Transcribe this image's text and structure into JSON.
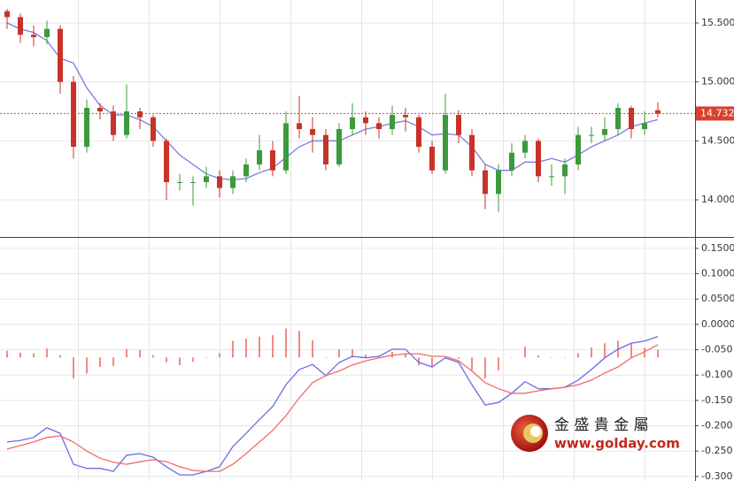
{
  "chart_data": [
    {
      "type": "candlestick",
      "ylim": [
        13.685,
        15.695
      ],
      "yticks": [
        {
          "value": 14.0,
          "label": "14.000"
        },
        {
          "value": 14.5,
          "label": "14.500"
        },
        {
          "value": 15.0,
          "label": "15.000"
        },
        {
          "value": 15.5,
          "label": "15.500"
        }
      ],
      "open": [
        15.6,
        15.55,
        15.4,
        15.38,
        15.45,
        15.0,
        14.45,
        14.78,
        14.75,
        14.55,
        14.75,
        14.7,
        14.5,
        14.15,
        14.15,
        14.15,
        14.2,
        14.1,
        14.2,
        14.3,
        14.42,
        14.25,
        14.65,
        14.6,
        14.55,
        14.3,
        14.6,
        14.7,
        14.65,
        14.6,
        14.72,
        14.7,
        14.45,
        14.25,
        14.72,
        14.55,
        14.25,
        14.05,
        14.25,
        14.4,
        14.5,
        14.2,
        14.2,
        14.3,
        14.55,
        14.55,
        14.6,
        14.78,
        14.6,
        14.76
      ],
      "high": [
        15.62,
        15.58,
        15.48,
        15.52,
        15.48,
        15.05,
        14.85,
        14.82,
        14.8,
        14.98,
        14.78,
        14.72,
        14.52,
        14.22,
        14.2,
        14.28,
        14.25,
        14.25,
        14.35,
        14.55,
        14.5,
        14.75,
        14.88,
        14.7,
        14.6,
        14.65,
        14.82,
        14.75,
        14.7,
        14.8,
        14.78,
        14.72,
        14.5,
        14.9,
        14.76,
        14.6,
        14.3,
        14.3,
        14.48,
        14.55,
        14.52,
        14.3,
        14.35,
        14.62,
        14.62,
        14.7,
        14.82,
        14.8,
        14.75,
        14.83
      ],
      "low": [
        15.45,
        15.33,
        15.3,
        15.32,
        14.9,
        14.35,
        14.4,
        14.68,
        14.5,
        14.52,
        14.6,
        14.45,
        14.0,
        14.08,
        13.95,
        14.1,
        14.02,
        14.05,
        14.15,
        14.25,
        14.2,
        14.22,
        14.52,
        14.4,
        14.25,
        14.28,
        14.55,
        14.55,
        14.52,
        14.55,
        14.58,
        14.4,
        14.22,
        14.22,
        14.48,
        14.2,
        13.92,
        13.9,
        14.2,
        14.35,
        14.15,
        14.12,
        14.05,
        14.25,
        14.48,
        14.5,
        14.55,
        14.52,
        14.55,
        14.7
      ],
      "close": [
        15.55,
        15.4,
        15.38,
        15.45,
        15.0,
        14.45,
        14.78,
        14.75,
        14.55,
        14.75,
        14.7,
        14.5,
        14.15,
        14.15,
        14.15,
        14.2,
        14.1,
        14.2,
        14.3,
        14.42,
        14.25,
        14.65,
        14.6,
        14.55,
        14.3,
        14.6,
        14.7,
        14.65,
        14.6,
        14.72,
        14.7,
        14.45,
        14.25,
        14.72,
        14.55,
        14.25,
        14.05,
        14.25,
        14.4,
        14.5,
        14.2,
        14.2,
        14.3,
        14.55,
        14.55,
        14.6,
        14.78,
        14.6,
        14.65,
        14.732
      ],
      "up_color": "#3c9a3c",
      "down_color": "#c83228",
      "series": [
        {
          "color": "#7b7be0",
          "values": [
            15.5,
            15.45,
            15.42,
            15.35,
            15.2,
            15.16,
            14.95,
            14.8,
            14.72,
            14.72,
            14.68,
            14.62,
            14.5,
            14.38,
            14.3,
            14.22,
            14.18,
            14.17,
            14.18,
            14.23,
            14.27,
            14.36,
            14.45,
            14.5,
            14.5,
            14.5,
            14.55,
            14.6,
            14.62,
            14.65,
            14.67,
            14.62,
            14.55,
            14.56,
            14.55,
            14.45,
            14.3,
            14.25,
            14.25,
            14.32,
            14.32,
            14.35,
            14.32,
            14.38,
            14.45,
            14.5,
            14.55,
            14.62,
            14.65,
            14.68
          ]
        }
      ],
      "last_price": 14.732,
      "last_price_color": "#d9412e",
      "grid": true
    },
    {
      "type": "macd",
      "ylim": [
        -0.309,
        0.169
      ],
      "yticks": [
        {
          "value": 0.15,
          "label": "0.1500"
        },
        {
          "value": 0.1,
          "label": "0.1000"
        },
        {
          "value": 0.05,
          "label": "0.0500"
        },
        {
          "value": 0,
          "label": "0.0000"
        },
        {
          "value": -0.05,
          "label": "-0.050"
        },
        {
          "value": -0.1,
          "label": "-0.100"
        },
        {
          "value": -0.15,
          "label": "-0.150"
        },
        {
          "value": -0.2,
          "label": "-0.200"
        },
        {
          "value": -0.25,
          "label": "-0.250"
        },
        {
          "value": -0.3,
          "label": "-0.300"
        }
      ],
      "y2lim": [
        -0.26,
        0.25
      ],
      "series": [
        {
          "type": "bar",
          "axis": "y2",
          "color": "#f08a80",
          "values": [
            0.014,
            0.01,
            0.009,
            0.019,
            0.005,
            -0.044,
            -0.034,
            -0.02,
            -0.018,
            0.018,
            0.016,
            0.005,
            -0.01,
            -0.016,
            -0.009,
            0.0,
            0.009,
            0.035,
            0.04,
            0.044,
            0.047,
            0.061,
            0.056,
            0.036,
            0.0,
            0.017,
            0.017,
            0.006,
            0.003,
            0.012,
            0.009,
            -0.017,
            -0.021,
            -0.003,
            -0.003,
            -0.027,
            -0.044,
            -0.027,
            0.0,
            0.023,
            0.004,
            0.0,
            0.0,
            0.009,
            0.021,
            0.03,
            0.035,
            0.029,
            0.021,
            0.016
          ]
        },
        {
          "type": "line",
          "color": "#6b6be8",
          "values": [
            -0.232,
            -0.229,
            -0.223,
            -0.204,
            -0.215,
            -0.276,
            -0.284,
            -0.284,
            -0.29,
            -0.258,
            -0.255,
            -0.262,
            -0.281,
            -0.297,
            -0.297,
            -0.29,
            -0.281,
            -0.241,
            -0.215,
            -0.188,
            -0.162,
            -0.119,
            -0.089,
            -0.079,
            -0.101,
            -0.075,
            -0.063,
            -0.066,
            -0.063,
            -0.049,
            -0.049,
            -0.075,
            -0.084,
            -0.066,
            -0.075,
            -0.119,
            -0.159,
            -0.154,
            -0.136,
            -0.113,
            -0.127,
            -0.127,
            -0.124,
            -0.11,
            -0.089,
            -0.066,
            -0.049,
            -0.037,
            -0.033,
            -0.024
          ]
        },
        {
          "type": "line",
          "color": "#f06a6a",
          "values": [
            -0.246,
            -0.239,
            -0.232,
            -0.223,
            -0.22,
            -0.232,
            -0.25,
            -0.264,
            -0.272,
            -0.276,
            -0.271,
            -0.267,
            -0.271,
            -0.281,
            -0.288,
            -0.29,
            -0.29,
            -0.276,
            -0.255,
            -0.232,
            -0.209,
            -0.18,
            -0.145,
            -0.115,
            -0.101,
            -0.092,
            -0.08,
            -0.072,
            -0.066,
            -0.061,
            -0.058,
            -0.058,
            -0.063,
            -0.063,
            -0.072,
            -0.092,
            -0.115,
            -0.127,
            -0.136,
            -0.136,
            -0.131,
            -0.127,
            -0.124,
            -0.119,
            -0.11,
            -0.096,
            -0.084,
            -0.066,
            -0.054,
            -0.04
          ]
        }
      ],
      "grid": true
    }
  ],
  "watermark": {
    "name": "金 盛 貴 金 屬",
    "url": "www.golday.com"
  }
}
